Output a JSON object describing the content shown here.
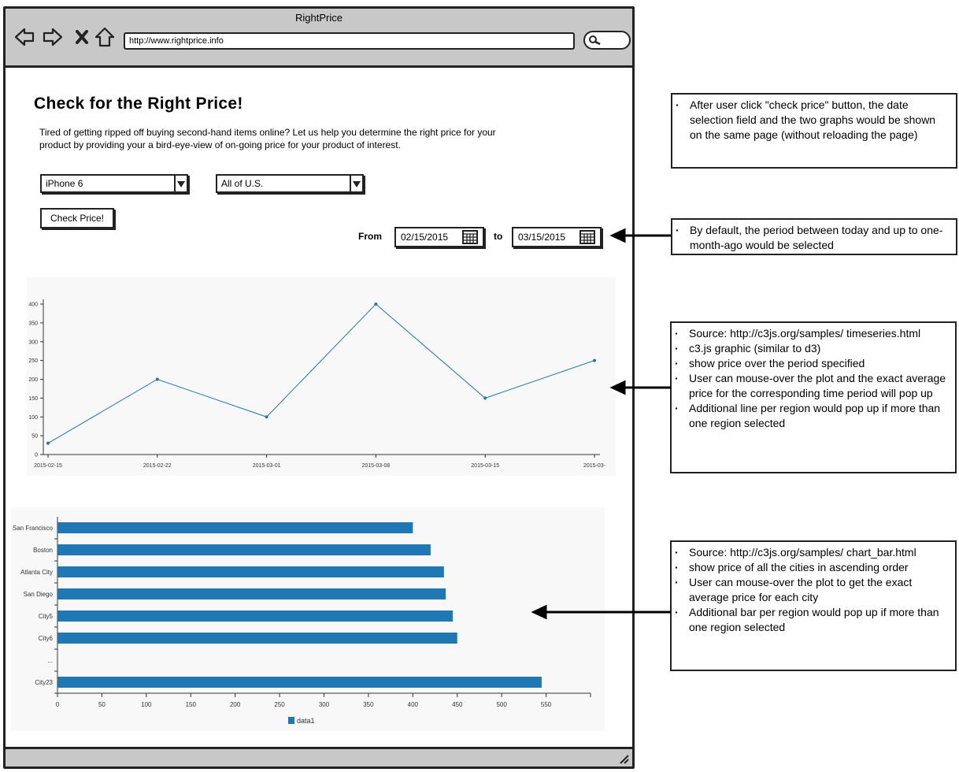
{
  "window": {
    "title": "RightPrice",
    "url": "http://www.rightprice.info"
  },
  "page": {
    "title": "Check for the Right Price!",
    "description": "Tired of getting ripped off buying second-hand items online? Let us help you determine the right price for your product by providing your a bird-eye-view of on-going price for your product of interest."
  },
  "controls": {
    "product_select": "iPhone 6",
    "region_select": "All of U.S.",
    "check_button": "Check Price!",
    "from_label": "From",
    "to_label": "to",
    "from_date": "02/15/2015",
    "to_date": "03/15/2015"
  },
  "notes": {
    "check_price": [
      "After user click \"check price\" button, the date selection field and the two graphs would be shown on the same page (without reloading the page)"
    ],
    "date_default": [
      "By default, the period between today and up to one-month-ago would be selected"
    ],
    "line_chart": [
      "Source: http://c3js.org/samples/ timeseries.html",
      "c3.js graphic (similar to d3)",
      "show price over the period specified",
      "User can mouse-over the plot and the exact average price for the corresponding time period will pop up",
      "Additional line per region would pop up if more than one region selected"
    ],
    "bar_chart": [
      "Source: http://c3js.org/samples/ chart_bar.html",
      "show price of all the cities in ascending order",
      "User can mouse-over the plot to get the exact average price for each city",
      "Additional bar per region would pop up if more than one region selected"
    ]
  },
  "colors": {
    "series": "#1f77b4",
    "chrome": "#c8c8c8"
  },
  "chart_data": [
    {
      "type": "line",
      "x": [
        "2015-02-15",
        "2015-02-22",
        "2015-03-01",
        "2015-03-08",
        "2015-03-15",
        "2015-03-"
      ],
      "values": [
        30,
        200,
        100,
        400,
        150,
        250
      ],
      "yticks": [
        0,
        50,
        100,
        150,
        200,
        250,
        300,
        350,
        400
      ],
      "ylim": [
        0,
        400
      ],
      "grid": false
    },
    {
      "type": "bar",
      "orientation": "horizontal",
      "categories": [
        "San Francisco",
        "Boston",
        "Atlanta City",
        "San Diego",
        "City5",
        "City6",
        "...",
        "City23"
      ],
      "values": [
        400,
        420,
        435,
        437,
        445,
        450,
        null,
        545
      ],
      "xticks": [
        0,
        50,
        100,
        150,
        200,
        250,
        300,
        350,
        400,
        450,
        500,
        550
      ],
      "xlim": [
        0,
        600
      ],
      "legend": "data1",
      "legend_position": "bottom"
    }
  ]
}
